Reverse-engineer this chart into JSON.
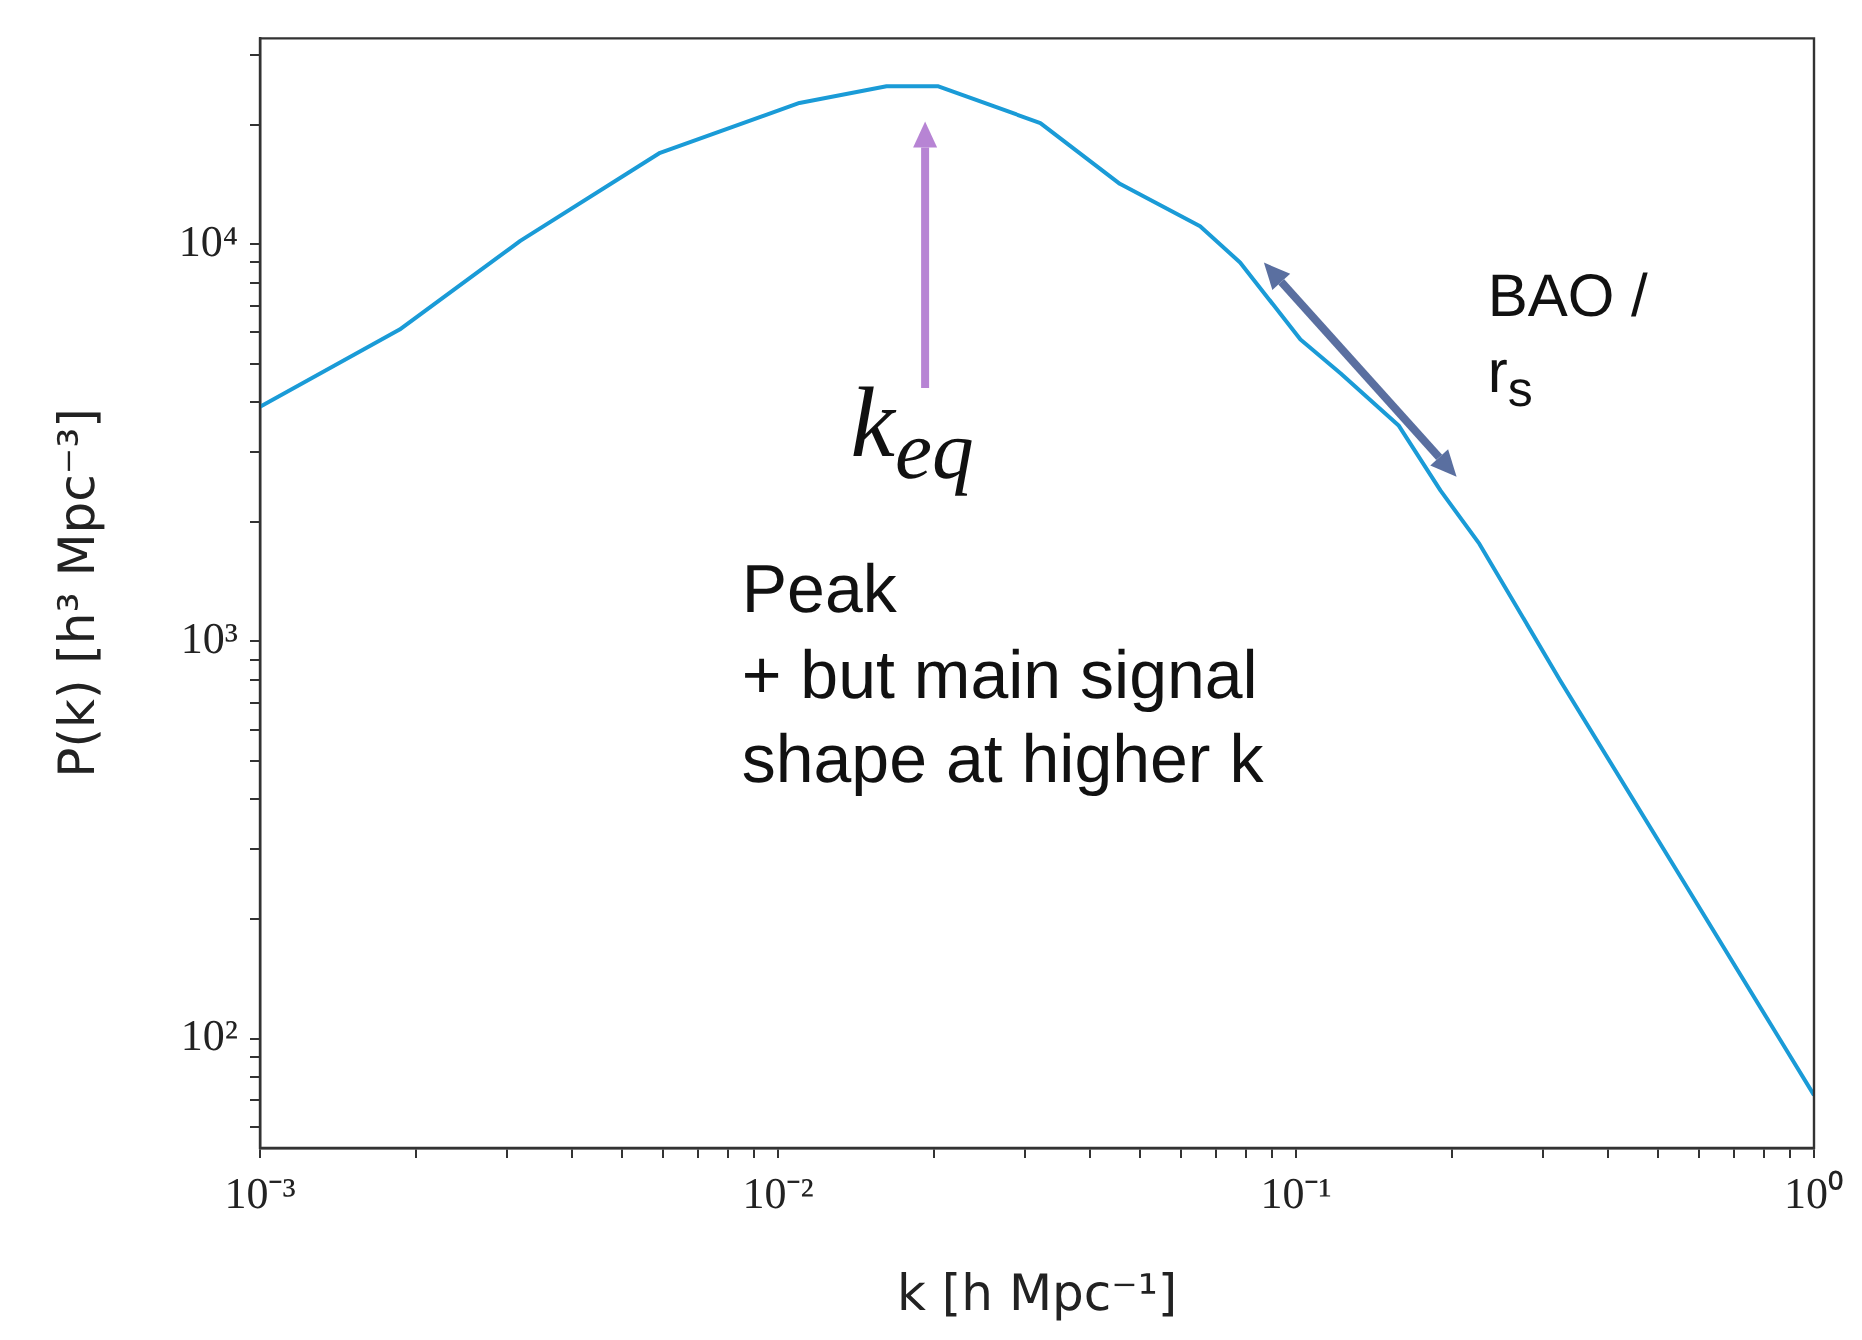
{
  "chart_data": {
    "type": "line",
    "xlabel": "k [h Mpc⁻¹]",
    "ylabel": "P(k) [h³ Mpc⁻³]",
    "x": [
      0.001,
      0.00186,
      0.00318,
      0.00592,
      0.011,
      0.0162,
      0.0204,
      0.0321,
      0.0457,
      0.0653,
      0.078,
      0.102,
      0.122,
      0.158,
      0.19,
      0.226,
      0.324,
      0.551,
      1.0
    ],
    "series": [
      {
        "color": "#1a9bd7",
        "values": [
          3900,
          6100,
          10200,
          17000,
          22700,
          25000,
          25000,
          20200,
          14200,
          11100,
          9000,
          5760,
          4730,
          3490,
          2400,
          1760,
          795,
          257,
          72
        ]
      }
    ],
    "log": "xy",
    "xlim": [
      0.001,
      1
    ],
    "ylim": [
      53,
      33000
    ],
    "xticks": [
      {
        "value": 0.001,
        "label": "10⁻³"
      },
      {
        "value": 0.002,
        "label": null
      },
      {
        "value": 0.003,
        "label": null
      },
      {
        "value": 0.004,
        "label": null
      },
      {
        "value": 0.005,
        "label": null
      },
      {
        "value": 0.006,
        "label": null
      },
      {
        "value": 0.007,
        "label": null
      },
      {
        "value": 0.008,
        "label": null
      },
      {
        "value": 0.009,
        "label": null
      },
      {
        "value": 0.01,
        "label": "10⁻²"
      },
      {
        "value": 0.02,
        "label": null
      },
      {
        "value": 0.03,
        "label": null
      },
      {
        "value": 0.04,
        "label": null
      },
      {
        "value": 0.05,
        "label": null
      },
      {
        "value": 0.06,
        "label": null
      },
      {
        "value": 0.07,
        "label": null
      },
      {
        "value": 0.08,
        "label": null
      },
      {
        "value": 0.09,
        "label": null
      },
      {
        "value": 0.1,
        "label": "10⁻¹"
      },
      {
        "value": 0.2,
        "label": null
      },
      {
        "value": 0.3,
        "label": null
      },
      {
        "value": 0.4,
        "label": null
      },
      {
        "value": 0.5,
        "label": null
      },
      {
        "value": 0.6,
        "label": null
      },
      {
        "value": 0.7,
        "label": null
      },
      {
        "value": 0.8,
        "label": null
      },
      {
        "value": 0.9,
        "label": null
      },
      {
        "value": 1,
        "label": "10⁰"
      }
    ],
    "yticks": [
      {
        "value": 60,
        "label": null
      },
      {
        "value": 70,
        "label": null
      },
      {
        "value": 80,
        "label": null
      },
      {
        "value": 90,
        "label": null
      },
      {
        "value": 100,
        "label": "10²"
      },
      {
        "value": 200,
        "label": null
      },
      {
        "value": 300,
        "label": null
      },
      {
        "value": 400,
        "label": null
      },
      {
        "value": 500,
        "label": null
      },
      {
        "value": 600,
        "label": null
      },
      {
        "value": 700,
        "label": null
      },
      {
        "value": 800,
        "label": null
      },
      {
        "value": 900,
        "label": null
      },
      {
        "value": 1000,
        "label": "10³"
      },
      {
        "value": 2000,
        "label": null
      },
      {
        "value": 3000,
        "label": null
      },
      {
        "value": 4000,
        "label": null
      },
      {
        "value": 5000,
        "label": null
      },
      {
        "value": 6000,
        "label": null
      },
      {
        "value": 7000,
        "label": null
      },
      {
        "value": 8000,
        "label": null
      },
      {
        "value": 9000,
        "label": null
      },
      {
        "value": 10000,
        "label": "10⁴"
      },
      {
        "value": 20000,
        "label": null
      },
      {
        "value": 30000,
        "label": null
      }
    ],
    "marker": "none",
    "line_style": "solid",
    "annotations": [
      "k$_{eq}$",
      "BAO /\nr$_{s}$",
      "Peak\n+ but main signal\nshape at higher k"
    ]
  }
}
